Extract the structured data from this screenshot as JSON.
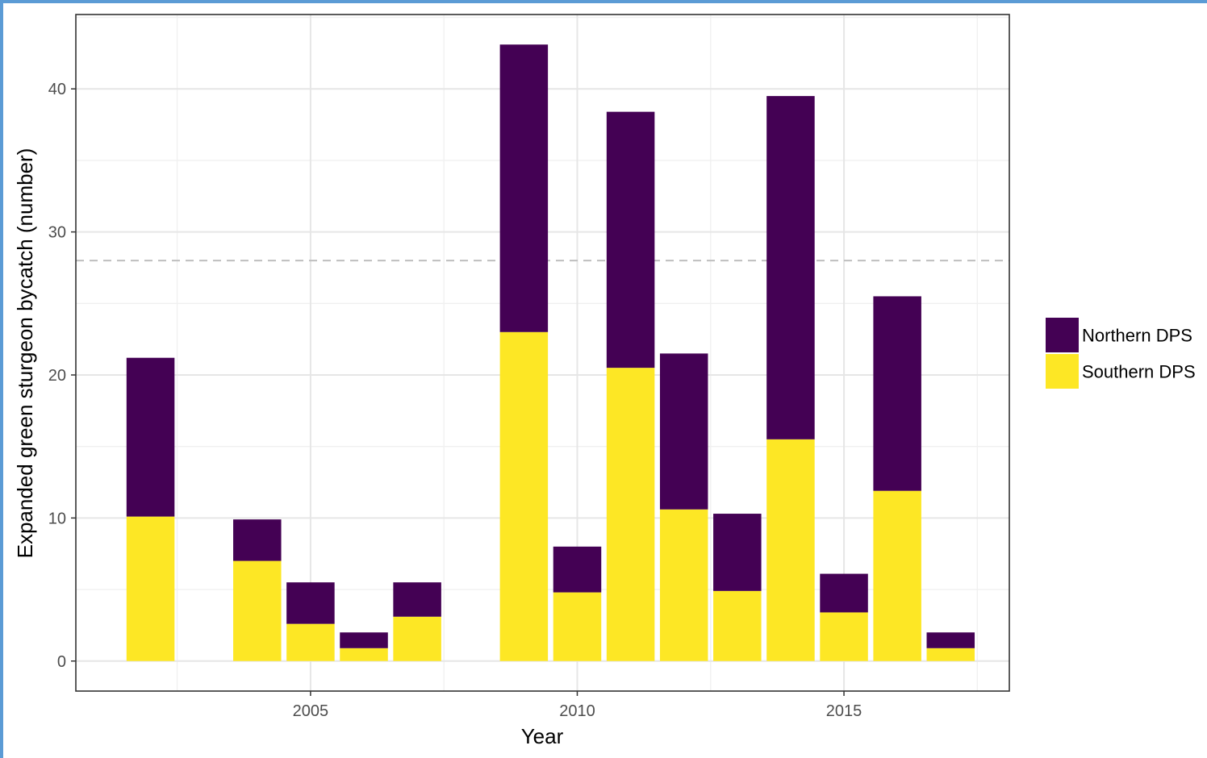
{
  "chart_data": {
    "type": "bar",
    "stacked": true,
    "xlabel": "Year",
    "ylabel": "Expanded green sturgeon bycatch (number)",
    "x": [
      2002,
      2004,
      2005,
      2006,
      2007,
      2009,
      2010,
      2011,
      2012,
      2013,
      2014,
      2015,
      2016,
      2017
    ],
    "series": [
      {
        "name": "Southern DPS",
        "color": "#fde725",
        "values": [
          10.1,
          7.0,
          2.6,
          0.9,
          3.1,
          23.0,
          4.8,
          20.5,
          10.6,
          4.9,
          15.5,
          3.4,
          11.9,
          0.9
        ]
      },
      {
        "name": "Northern DPS",
        "color": "#440154",
        "values": [
          11.1,
          2.9,
          2.9,
          1.1,
          2.4,
          20.1,
          3.2,
          17.9,
          10.9,
          5.4,
          24.0,
          2.7,
          13.6,
          1.1
        ]
      }
    ],
    "xlim": [
      2000.6,
      2018.1
    ],
    "ylim": [
      -2.1,
      45.2
    ],
    "x_ticks": [
      2005,
      2010,
      2015
    ],
    "x_tick_labels": [
      "2005",
      "2010",
      "2015"
    ],
    "y_ticks": [
      0,
      10,
      20,
      30,
      40
    ],
    "y_tick_labels": [
      "0",
      "10",
      "20",
      "30",
      "40"
    ],
    "reference_line": {
      "y": 28,
      "style": "dashed",
      "color": "#bfbfbf"
    },
    "grid": true,
    "legend": {
      "placement": "right",
      "entries": [
        {
          "label": "Northern DPS",
          "color": "#440154"
        },
        {
          "label": "Southern DPS",
          "color": "#fde725"
        }
      ]
    }
  }
}
